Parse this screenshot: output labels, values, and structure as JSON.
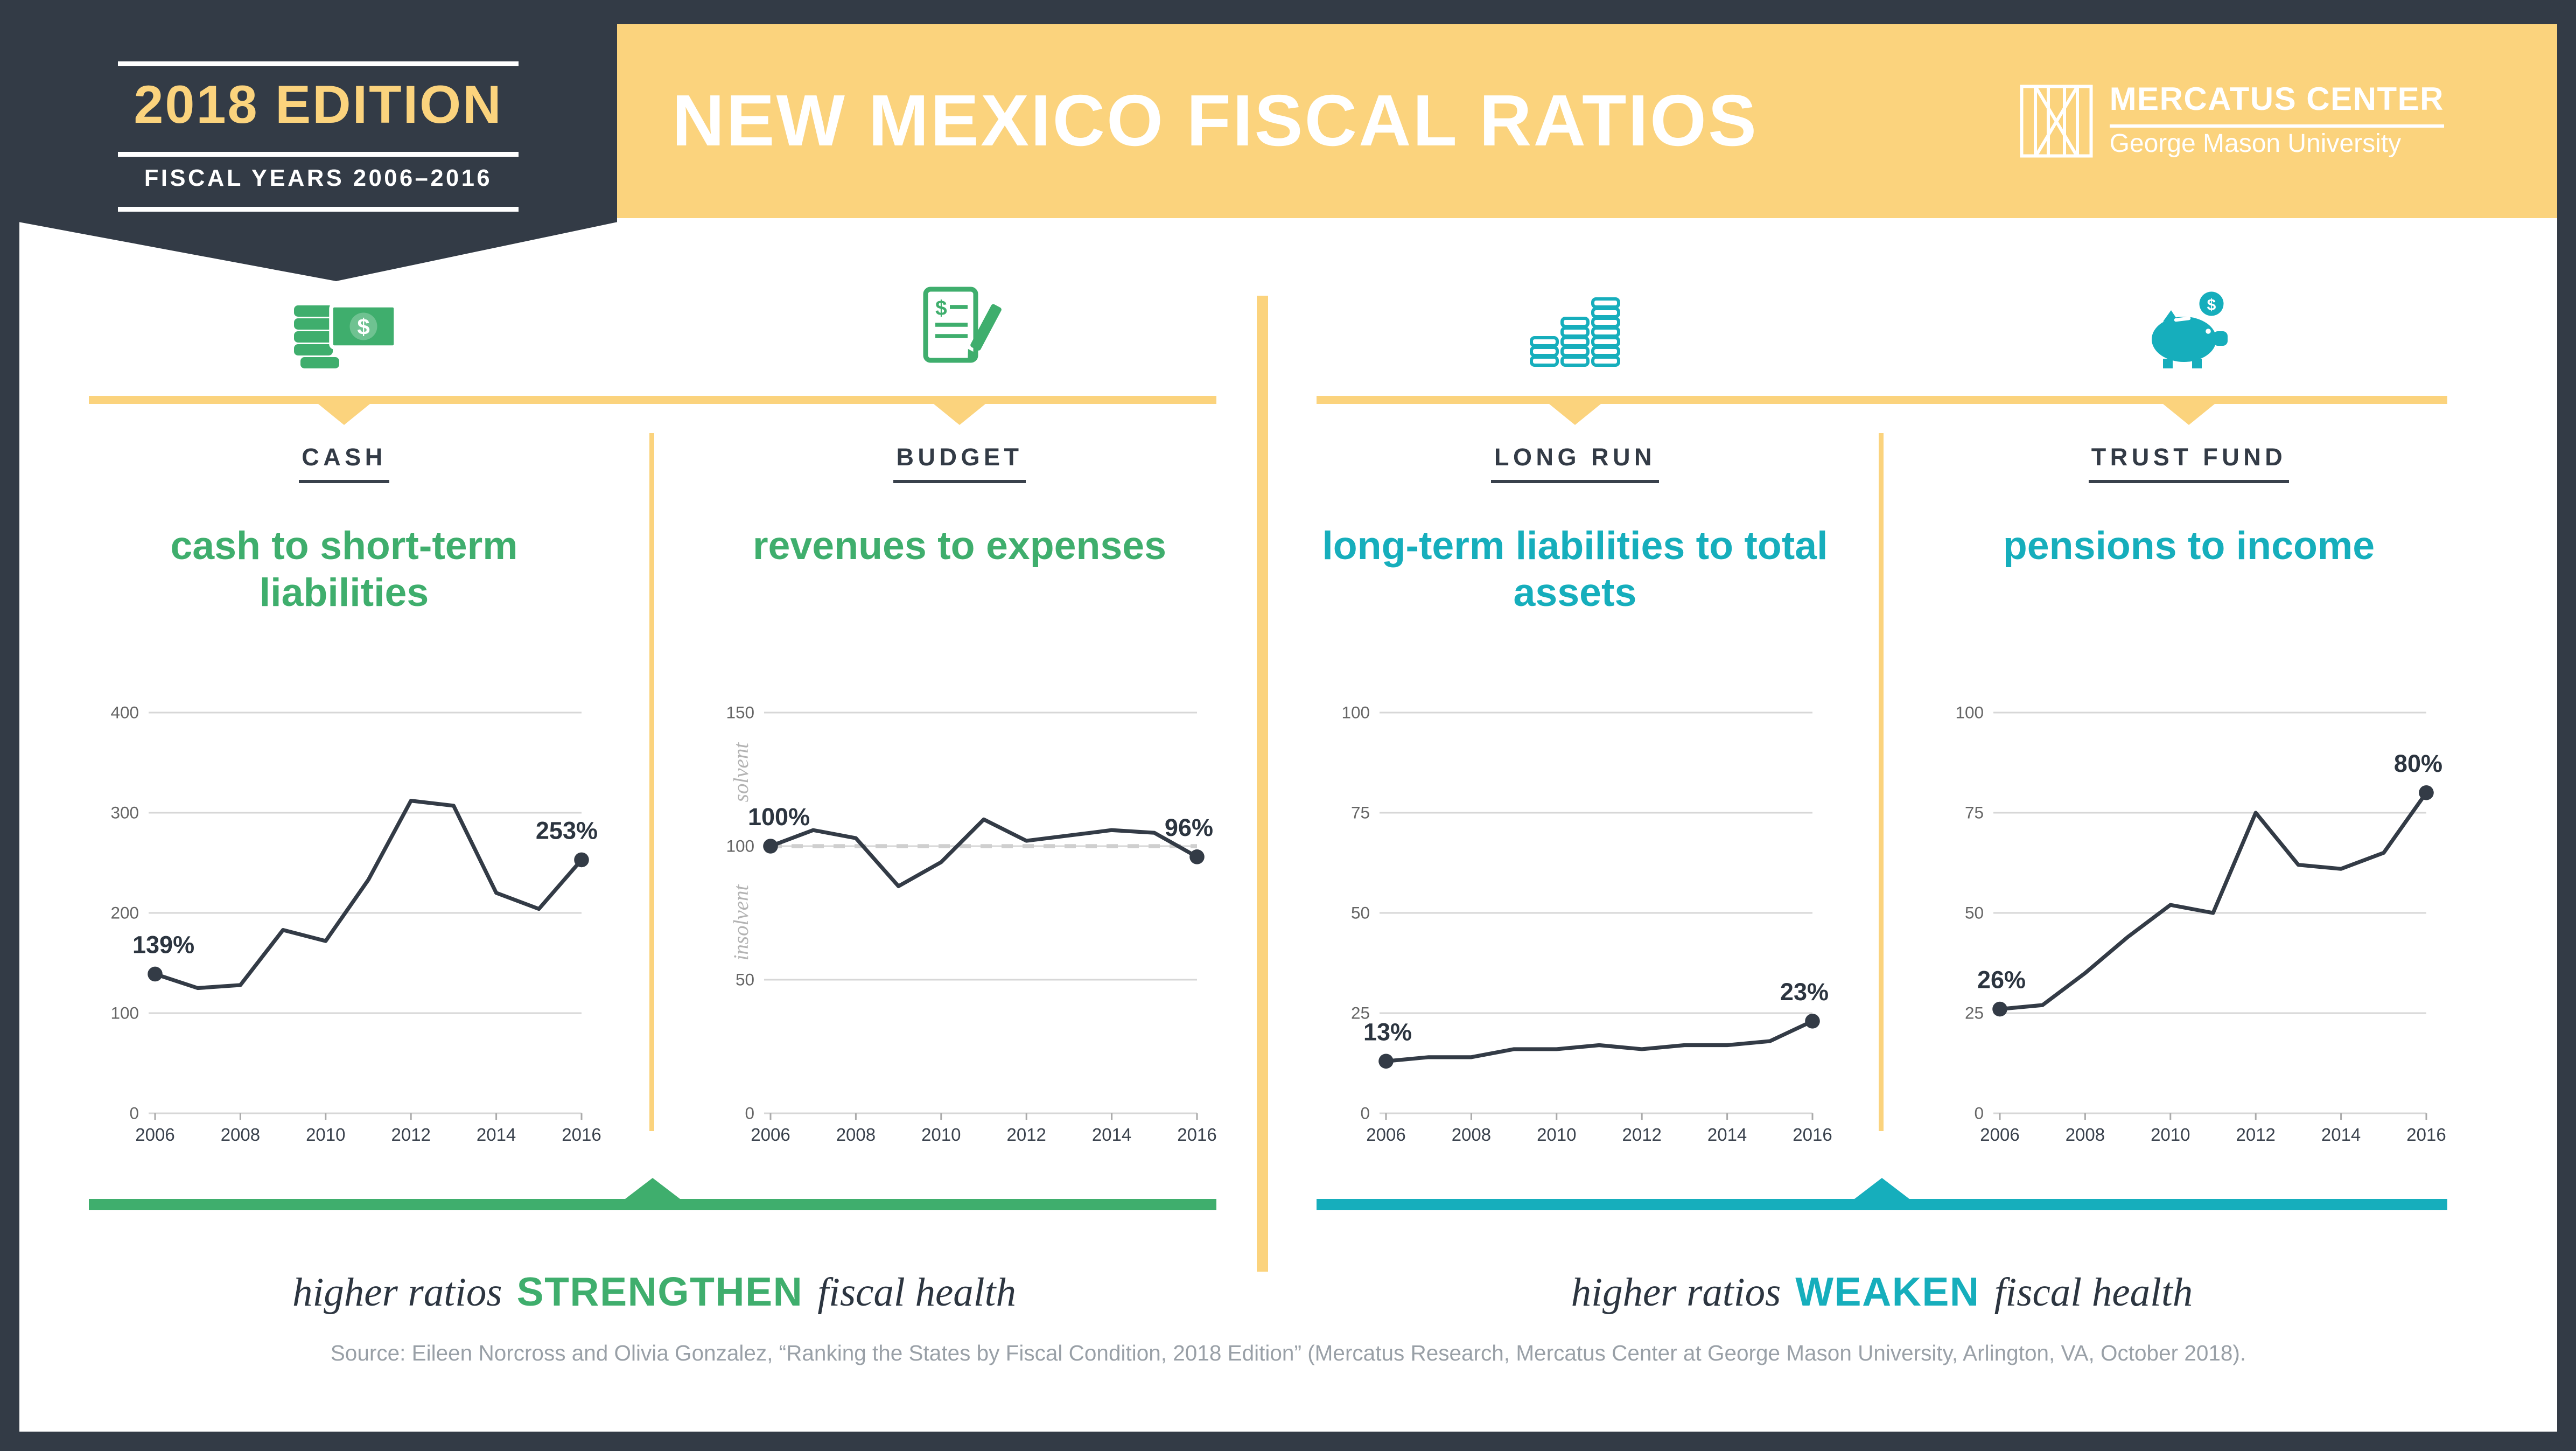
{
  "page": {
    "bg_dark": "#333b46",
    "accent_yellow": "#fbd37d",
    "accent_green": "#3fae6d",
    "accent_teal": "#16aebc"
  },
  "header": {
    "badge": {
      "title": "2018 EDITION",
      "subtitle": "FISCAL YEARS 2006–2016"
    },
    "title": "NEW MEXICO FISCAL RATIOS",
    "logo": {
      "icon": "mercatus-lattice-icon",
      "name": "MERCATUS CENTER",
      "subname": "George Mason University"
    }
  },
  "notes": {
    "strengthen": {
      "prefix": "higher ratios",
      "keyword": "STRENGTHEN",
      "suffix": "fiscal health"
    },
    "weaken": {
      "prefix": "higher ratios",
      "keyword": "WEAKEN",
      "suffix": "fiscal health"
    }
  },
  "source": "Source: Eileen Norcross and Olivia Gonzalez, “Ranking the States by Fiscal Condition, 2018 Edition” (Mercatus Research, Mercatus Center at George Mason University, Arlington, VA, October 2018).",
  "chart_data": [
    {
      "key": "cash",
      "type": "line",
      "category": "CASH",
      "icon": "cash-coins-icon",
      "title": "cash to short-term liabilities",
      "accent": "#3fae6d",
      "x": [
        2006,
        2007,
        2008,
        2009,
        2010,
        2011,
        2012,
        2013,
        2014,
        2015,
        2016
      ],
      "values": [
        139,
        125,
        128,
        183,
        172,
        233,
        312,
        307,
        220,
        204,
        253
      ],
      "ylim": [
        0,
        400
      ],
      "yticks": [
        0,
        100,
        200,
        300,
        400
      ],
      "xticks": [
        2006,
        2008,
        2010,
        2012,
        2014,
        2016
      ],
      "start_label": "139%",
      "end_label": "253%"
    },
    {
      "key": "budget",
      "type": "line",
      "category": "BUDGET",
      "icon": "budget-document-icon",
      "title": "revenues to expenses",
      "accent": "#3fae6d",
      "x": [
        2006,
        2007,
        2008,
        2009,
        2010,
        2011,
        2012,
        2013,
        2014,
        2015,
        2016
      ],
      "values": [
        100,
        106,
        103,
        85,
        94,
        110,
        102,
        104,
        106,
        105,
        96
      ],
      "ylim": [
        0,
        150
      ],
      "yticks": [
        0,
        50,
        100,
        150
      ],
      "xticks": [
        2006,
        2008,
        2010,
        2012,
        2014,
        2016
      ],
      "ref_line": 100,
      "side_labels": {
        "above": "solvent",
        "below": "insolvent"
      },
      "start_label": "100%",
      "end_label": "96%"
    },
    {
      "key": "long_run",
      "type": "line",
      "category": "LONG RUN",
      "icon": "coin-stacks-icon",
      "title": "long-term liabilities to total assets",
      "accent": "#16aebc",
      "x": [
        2006,
        2007,
        2008,
        2009,
        2010,
        2011,
        2012,
        2013,
        2014,
        2015,
        2016
      ],
      "values": [
        13,
        14,
        14,
        16,
        16,
        17,
        16,
        17,
        17,
        18,
        23
      ],
      "ylim": [
        0,
        100
      ],
      "yticks": [
        0,
        25,
        50,
        75,
        100
      ],
      "xticks": [
        2006,
        2008,
        2010,
        2012,
        2014,
        2016
      ],
      "start_label": "13%",
      "end_label": "23%"
    },
    {
      "key": "trust_fund",
      "type": "line",
      "category": "TRUST FUND",
      "icon": "piggy-bank-icon",
      "title": "pensions to income",
      "accent": "#16aebc",
      "x": [
        2006,
        2007,
        2008,
        2009,
        2010,
        2011,
        2012,
        2013,
        2014,
        2015,
        2016
      ],
      "values": [
        26,
        27,
        35,
        44,
        52,
        50,
        75,
        62,
        61,
        65,
        80
      ],
      "ylim": [
        0,
        100
      ],
      "yticks": [
        0,
        25,
        50,
        75,
        100
      ],
      "xticks": [
        2006,
        2008,
        2010,
        2012,
        2014,
        2016
      ],
      "start_label": "26%",
      "end_label": "80%"
    }
  ]
}
